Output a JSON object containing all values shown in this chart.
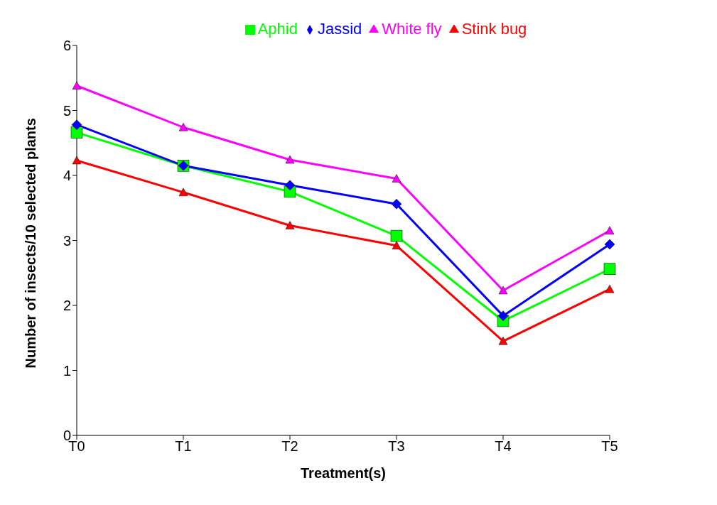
{
  "chart_data": {
    "type": "line",
    "xlabel": "Treatment(s)",
    "ylabel": "Number of insects/10 selected plants",
    "categories": [
      "T0",
      "T1",
      "T2",
      "T3",
      "T4",
      "T5"
    ],
    "series": [
      {
        "name": "Aphid",
        "color": "#00ff00",
        "marker": "square",
        "values": [
          4.66,
          4.15,
          3.75,
          3.07,
          1.76,
          2.56
        ]
      },
      {
        "name": "Jassid",
        "color": "#0000ff",
        "marker": "diamond",
        "values": [
          4.78,
          4.15,
          3.85,
          3.56,
          1.84,
          2.94
        ]
      },
      {
        "name": "White fly",
        "color": "#ff00ff",
        "marker": "triangle",
        "values": [
          5.38,
          4.74,
          4.24,
          3.95,
          2.23,
          3.15
        ]
      },
      {
        "name": "Stink bug",
        "color": "#ff0000",
        "marker": "triangle",
        "values": [
          4.23,
          3.74,
          3.23,
          2.92,
          1.45,
          2.25
        ]
      }
    ],
    "ylim": [
      0,
      6
    ],
    "yticks": [
      0,
      1,
      2,
      3,
      4,
      5,
      6
    ],
    "grid": false,
    "legend": "top"
  }
}
